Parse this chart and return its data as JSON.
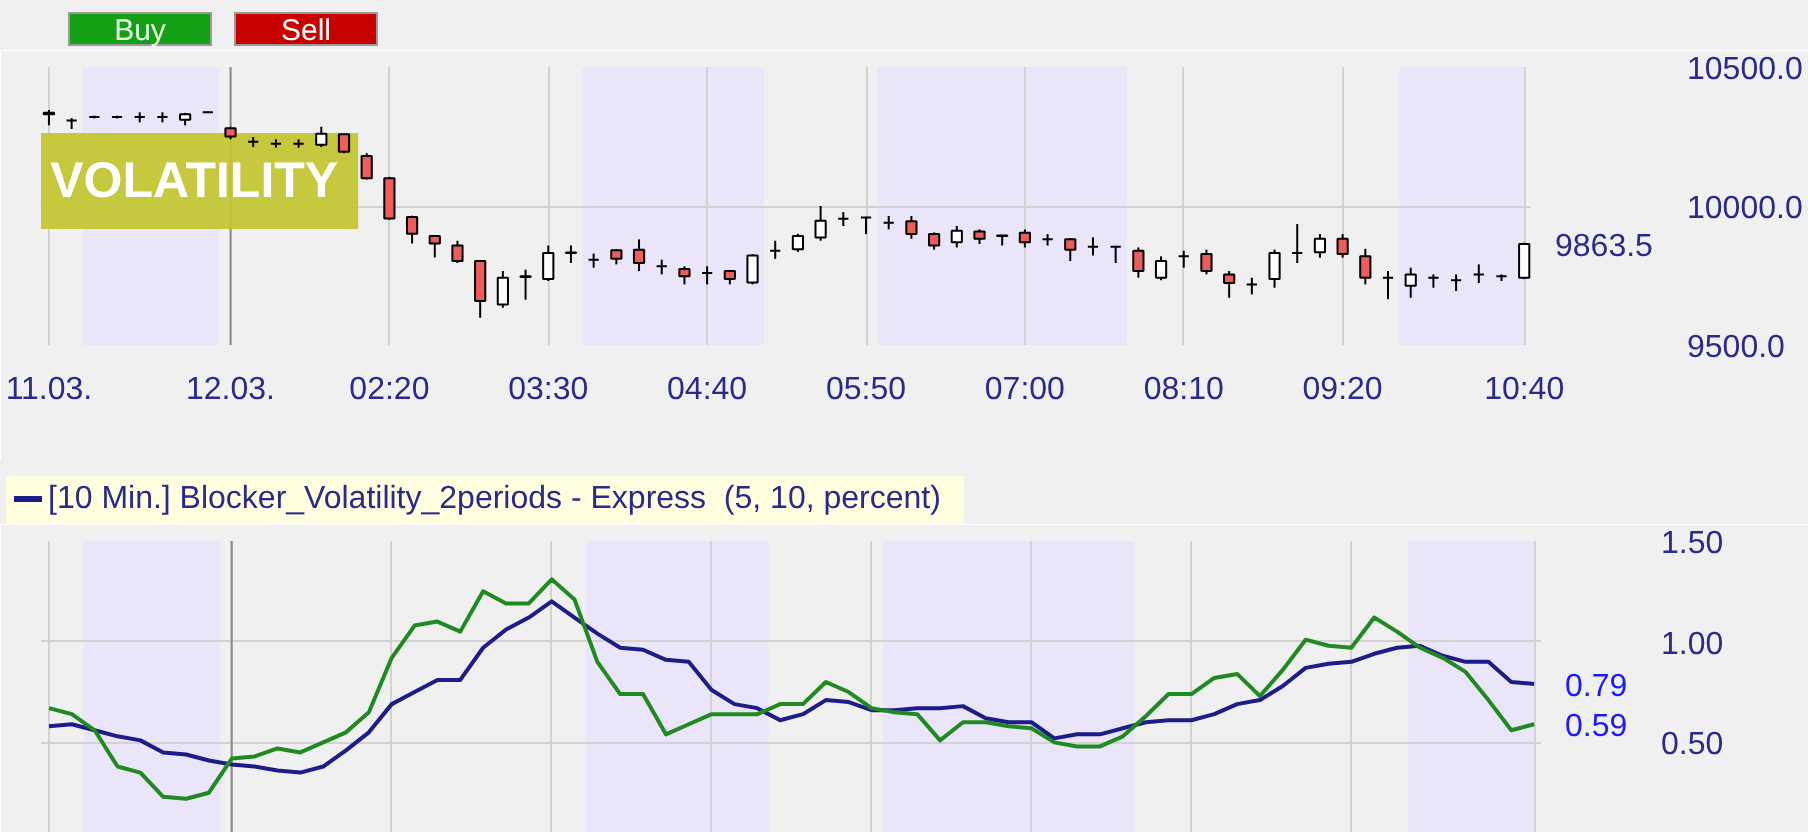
{
  "chart_data": [
    {
      "type": "candlestick",
      "title": "VOLATILITY",
      "annotations": [
        "Buy",
        "Sell"
      ],
      "categories": [
        "11.03.",
        null,
        null,
        null,
        null,
        null,
        null,
        null,
        "12.03.",
        null,
        null,
        null,
        null,
        null,
        null,
        "02:20",
        null,
        null,
        null,
        null,
        null,
        null,
        "03:30",
        null,
        null,
        null,
        null,
        null,
        null,
        "04:40",
        null,
        null,
        null,
        null,
        null,
        null,
        "05:50",
        null,
        null,
        null,
        null,
        null,
        null,
        "07:00",
        null,
        null,
        null,
        null,
        null,
        null,
        "08:10",
        null,
        null,
        null,
        null,
        null,
        null,
        "09:20",
        null,
        null,
        null,
        null,
        null,
        null,
        null,
        "10:40"
      ],
      "ohlc": [
        [
          10335,
          10345,
          10290,
          10330
        ],
        [
          10308,
          10316,
          10277,
          10308
        ],
        [
          10320,
          10325,
          10315,
          10320
        ],
        [
          10320,
          10325,
          10315,
          10320
        ],
        [
          10320,
          10337,
          10301,
          10320
        ],
        [
          10320,
          10337,
          10301,
          10320
        ],
        [
          10310,
          10335,
          10290,
          10330
        ],
        [
          10337,
          10340,
          10335,
          10337
        ],
        [
          10280,
          10285,
          10240,
          10250
        ],
        [
          10231,
          10248,
          10212,
          10231
        ],
        [
          10224,
          10240,
          10210,
          10224
        ],
        [
          10224,
          10240,
          10210,
          10224
        ],
        [
          10220,
          10285,
          10212,
          10260
        ],
        [
          10258,
          10260,
          10190,
          10195
        ],
        [
          10180,
          10190,
          10095,
          10100
        ],
        [
          10100,
          10105,
          9950,
          9955
        ],
        [
          9960,
          9965,
          9865,
          9900
        ],
        [
          9892,
          9895,
          9815,
          9865
        ],
        [
          9858,
          9875,
          9795,
          9802
        ],
        [
          9802,
          9805,
          9598,
          9658
        ],
        [
          9646,
          9766,
          9634,
          9742
        ],
        [
          9745,
          9771,
          9663,
          9747
        ],
        [
          9737,
          9858,
          9730,
          9831
        ],
        [
          9833,
          9858,
          9795,
          9831
        ],
        [
          9807,
          9829,
          9778,
          9807
        ],
        [
          9841,
          9845,
          9790,
          9810
        ],
        [
          9843,
          9880,
          9766,
          9795
        ],
        [
          9783,
          9807,
          9754,
          9783
        ],
        [
          9773,
          9783,
          9718,
          9747
        ],
        [
          9759,
          9783,
          9718,
          9759
        ],
        [
          9766,
          9770,
          9718,
          9737
        ],
        [
          9725,
          9827,
          9718,
          9822
        ],
        [
          9839,
          9875,
          9810,
          9839
        ],
        [
          9844,
          9900,
          9835,
          9892
        ],
        [
          9887,
          10000,
          9875,
          9947
        ],
        [
          9954,
          9978,
          9928,
          9954
        ],
        [
          9959,
          9961,
          9899,
          9959
        ],
        [
          9940,
          9964,
          9916,
          9940
        ],
        [
          9945,
          9964,
          9882,
          9899
        ],
        [
          9899,
          9905,
          9843,
          9858
        ],
        [
          9870,
          9928,
          9851,
          9911
        ],
        [
          9908,
          9916,
          9863,
          9882
        ],
        [
          9894,
          9896,
          9858,
          9892
        ],
        [
          9904,
          9916,
          9851,
          9870
        ],
        [
          9880,
          9899,
          9858,
          9880
        ],
        [
          9880,
          9885,
          9802,
          9843
        ],
        [
          9853,
          9887,
          9822,
          9853
        ],
        [
          9853,
          9855,
          9795,
          9853
        ],
        [
          9839,
          9851,
          9742,
          9766
        ],
        [
          9742,
          9819,
          9733,
          9802
        ],
        [
          9819,
          9839,
          9778,
          9819
        ],
        [
          9827,
          9843,
          9754,
          9766
        ],
        [
          9754,
          9766,
          9670,
          9723
        ],
        [
          9718,
          9742,
          9682,
          9718
        ],
        [
          9737,
          9843,
          9706,
          9831
        ],
        [
          9831,
          9935,
          9795,
          9831
        ],
        [
          9834,
          9899,
          9814,
          9882
        ],
        [
          9882,
          9899,
          9814,
          9827
        ],
        [
          9819,
          9846,
          9718,
          9742
        ],
        [
          9742,
          9766,
          9665,
          9742
        ],
        [
          9713,
          9778,
          9670,
          9754
        ],
        [
          9742,
          9754,
          9706,
          9742
        ],
        [
          9733,
          9754,
          9694,
          9733
        ],
        [
          9754,
          9790,
          9723,
          9754
        ],
        [
          9747,
          9754,
          9730,
          9747
        ],
        [
          9742,
          9868,
          9737,
          9863.5
        ]
      ],
      "value_labels": [
        null,
        null,
        null,
        null,
        null,
        null,
        null,
        null,
        null,
        null,
        null,
        null,
        null,
        null,
        null,
        null,
        null,
        null,
        null,
        null,
        null,
        null,
        null,
        null,
        null,
        null,
        null,
        null,
        null,
        null,
        null,
        null,
        null,
        null,
        null,
        null,
        null,
        null,
        null,
        null,
        null,
        null,
        null,
        null,
        null,
        null,
        null,
        null,
        null,
        null,
        null,
        null,
        null,
        null,
        null,
        null,
        null,
        null,
        null,
        null,
        null,
        null,
        null,
        null,
        null,
        "9863.5"
      ],
      "colors": [
        "#000000",
        "#000000",
        "#000000",
        "#000000",
        "#000000",
        "#000000",
        "#ffffff",
        "#000000",
        "#ee5c5c",
        "#000000",
        "#000000",
        "#000000",
        "#ffffff",
        "#ee5c5c",
        "#ee5c5c",
        "#ee5c5c",
        "#ee5c5c",
        "#ee5c5c",
        "#ee5c5c",
        "#ee5c5c",
        "#ffffff",
        "#000000",
        "#ffffff",
        "#000000",
        "#000000",
        "#ee5c5c",
        "#ee5c5c",
        "#000000",
        "#ee5c5c",
        "#000000",
        "#ee5c5c",
        "#ffffff",
        "#000000",
        "#ffffff",
        "#ffffff",
        "#000000",
        "#000000",
        "#000000",
        "#ee5c5c",
        "#ee5c5c",
        "#ffffff",
        "#ee5c5c",
        "#000000",
        "#ee5c5c",
        "#000000",
        "#ee5c5c",
        "#000000",
        "#000000",
        "#ee5c5c",
        "#ffffff",
        "#000000",
        "#ee5c5c",
        "#ee5c5c",
        "#000000",
        "#ffffff",
        "#000000",
        "#ffffff",
        "#ee5c5c",
        "#ee5c5c",
        "#000000",
        "#ffffff",
        "#000000",
        "#000000",
        "#000000",
        "#000000",
        "#ffffff"
      ],
      "ylim": [
        9500,
        10500
      ],
      "yticks": [
        {
          "value": 9500,
          "label": "9500.0"
        },
        {
          "value": 10000,
          "label": "10000.0"
        },
        {
          "value": 10500,
          "label": "10500.0"
        }
      ],
      "grid": true,
      "ref_lines": [
        {
          "axis": "x",
          "value": "12.03.",
          "color": "#8c8c8c"
        }
      ]
    },
    {
      "type": "line",
      "legend": "top left",
      "categories": [
        null,
        null,
        null,
        null,
        null,
        null,
        null,
        null,
        null,
        null,
        null,
        null,
        null,
        null,
        null,
        null,
        null,
        null,
        null,
        null,
        null,
        null,
        null,
        null,
        null,
        null,
        null,
        null,
        null,
        null,
        null,
        null,
        null,
        null,
        null,
        null,
        null,
        null,
        null,
        null,
        null,
        null,
        null,
        null,
        null,
        null,
        null,
        null,
        null,
        null,
        null,
        null,
        null,
        null,
        null,
        null,
        null,
        null,
        null,
        null,
        null,
        null,
        null,
        null,
        null,
        null
      ],
      "series": [
        {
          "name": "[10 Min.] Blocker_Volatility_2periods - Express  (5, 10, percent)",
          "color": "#1c1c8a",
          "values": [
            0.58,
            0.59,
            0.56,
            0.53,
            0.51,
            0.45,
            0.44,
            0.41,
            0.39,
            0.38,
            0.36,
            0.35,
            0.38,
            0.46,
            0.55,
            0.69,
            0.75,
            0.81,
            0.81,
            0.97,
            1.06,
            1.12,
            1.2,
            1.12,
            1.04,
            0.97,
            0.96,
            0.91,
            0.9,
            0.76,
            0.69,
            0.67,
            0.61,
            0.64,
            0.71,
            0.7,
            0.66,
            0.66,
            0.67,
            0.67,
            0.68,
            0.62,
            0.6,
            0.6,
            0.52,
            0.54,
            0.54,
            0.57,
            0.6,
            0.61,
            0.61,
            0.64,
            0.69,
            0.71,
            0.78,
            0.87,
            0.89,
            0.9,
            0.94,
            0.97,
            0.98,
            0.93,
            0.9,
            0.9,
            0.8,
            0.79
          ],
          "value_labels": [
            null,
            null,
            null,
            null,
            null,
            null,
            null,
            null,
            null,
            null,
            null,
            null,
            null,
            null,
            null,
            null,
            null,
            null,
            null,
            null,
            null,
            null,
            null,
            null,
            null,
            null,
            null,
            null,
            null,
            null,
            null,
            null,
            null,
            null,
            null,
            null,
            null,
            null,
            null,
            null,
            null,
            null,
            null,
            null,
            null,
            null,
            null,
            null,
            null,
            null,
            null,
            null,
            null,
            null,
            null,
            null,
            null,
            null,
            null,
            null,
            null,
            null,
            null,
            null,
            null,
            "0.79"
          ]
        },
        {
          "color": "#1f8a1f",
          "values": [
            0.67,
            0.64,
            0.56,
            0.38,
            0.35,
            0.23,
            0.22,
            0.25,
            0.42,
            0.43,
            0.47,
            0.45,
            0.5,
            0.55,
            0.65,
            0.92,
            1.08,
            1.1,
            1.05,
            1.25,
            1.19,
            1.19,
            1.31,
            1.21,
            0.9,
            0.74,
            0.74,
            0.54,
            0.59,
            0.64,
            0.64,
            0.64,
            0.69,
            0.69,
            0.8,
            0.75,
            0.67,
            0.65,
            0.64,
            0.51,
            0.6,
            0.6,
            0.58,
            0.57,
            0.5,
            0.48,
            0.48,
            0.53,
            0.63,
            0.74,
            0.74,
            0.82,
            0.84,
            0.73,
            0.86,
            1.01,
            0.98,
            0.97,
            1.12,
            1.05,
            0.97,
            0.92,
            0.85,
            0.71,
            0.56,
            0.59
          ],
          "value_labels": [
            null,
            null,
            null,
            null,
            null,
            null,
            null,
            null,
            null,
            null,
            null,
            null,
            null,
            null,
            null,
            null,
            null,
            null,
            null,
            null,
            null,
            null,
            null,
            null,
            null,
            null,
            null,
            null,
            null,
            null,
            null,
            null,
            null,
            null,
            null,
            null,
            null,
            null,
            null,
            null,
            null,
            null,
            null,
            null,
            null,
            null,
            null,
            null,
            null,
            null,
            null,
            null,
            null,
            null,
            null,
            null,
            null,
            null,
            null,
            null,
            null,
            null,
            null,
            null,
            null,
            "0.59"
          ]
        }
      ],
      "ylim": [
        0.05,
        1.5
      ],
      "yticks": [
        {
          "value": 0.5,
          "label": "0.50"
        },
        {
          "value": 1.0,
          "label": "1.00"
        },
        {
          "value": 1.5,
          "label": "1.50"
        }
      ],
      "grid": true
    }
  ]
}
